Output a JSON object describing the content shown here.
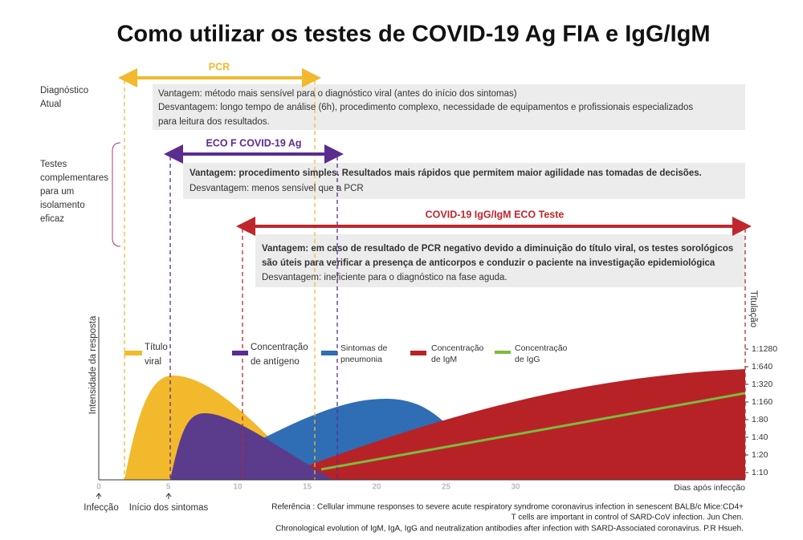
{
  "title": "Como utilizar os testes de COVID-19 Ag FIA e IgG/IgM",
  "left_labels": {
    "current": [
      "Diagnóstico",
      "Atual"
    ],
    "complementary": [
      "Testes",
      "complementares",
      "para um",
      "isolamento",
      "eficaz"
    ]
  },
  "tests": [
    {
      "name": "PCR",
      "lines": [
        "Vantagem: método mais sensível para o diagnóstico viral (antes do início dos sintomas)",
        "Desvantagem:  longo tempo de análise (6h), procedimento complexo, necessidade de equipamentos e profissionais especializados",
        "para leitura dos resultados."
      ]
    },
    {
      "name": "ECO F COVID-19 Ag",
      "lines": [
        "Vantagem: procedimento simples. Resultados mais rápidos que permitem maior agilidade nas tomadas de decisões.",
        "Desvantagem: menos sensível que a PCR"
      ]
    },
    {
      "name": "COVID-19 IgG/IgM ECO Teste",
      "lines": [
        "Vantagem: em caso de resultado de PCR negativo devido a diminuição do título viral, os testes sorológicos",
        "são úteis para verificar a presença de anticorpos e conduzir o paciente na investigação epidemiológica",
        "Desvantagem: ineficiente para o diagnóstico na fase aguda."
      ]
    }
  ],
  "chart": {
    "y_label": "Intensidade da resposta",
    "y2_label": "Titulação",
    "x_label": "Dias após infecção",
    "x_ticks": [
      0,
      5,
      10,
      15,
      20,
      25,
      30
    ],
    "titer_ticks": [
      "1:1280",
      "1:640",
      "1:320",
      "1:160",
      "1:80",
      "1:40",
      "1:20",
      "1:10"
    ],
    "legend": [
      [
        "Título",
        "viral"
      ],
      [
        "Concentração",
        "de antígeno"
      ],
      [
        "Sintomas de",
        "pneumonia"
      ],
      [
        "Concentração",
        "de IgM"
      ],
      [
        "Concentração",
        "de IgG"
      ]
    ]
  },
  "markers": [
    "Infecção",
    "Início dos sintomas"
  ],
  "reference": [
    "Referência : Cellular immune responses to severe acute respiratory syndrome coronavirus infection in senescent BALB/c Mice:CD4+",
    "T cells are important in control of SARD-CoV infection. Jun Chen.",
    "Chronological evolution of IgM, IgA, IgG and neutralization antibodies after infection with SARD-Associated coronavirus. P.R Hsueh."
  ]
}
